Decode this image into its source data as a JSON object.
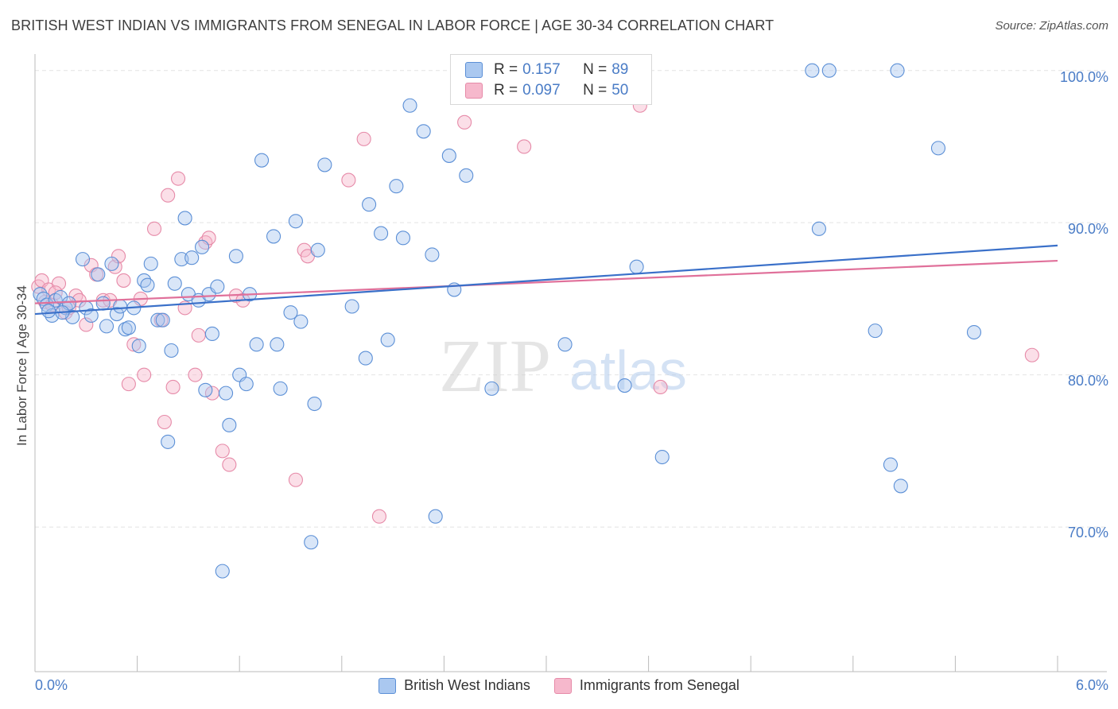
{
  "title": "BRITISH WEST INDIAN VS IMMIGRANTS FROM SENEGAL IN LABOR FORCE | AGE 30-34 CORRELATION CHART",
  "source": "Source: ZipAtlas.com",
  "watermark": {
    "zip": "ZIP",
    "atlas": "atlas"
  },
  "legend_stats": [
    {
      "r_label": "R =",
      "r_value": "0.157",
      "n_label": "N =",
      "n_value": "89"
    },
    {
      "r_label": "R =",
      "r_value": "0.097",
      "n_label": "N =",
      "n_value": "50"
    }
  ],
  "colors": {
    "blue_fill": "#aac8f0",
    "blue_stroke": "#5b8fd6",
    "blue_line": "#3a70c9",
    "pink_fill": "#f6b8cc",
    "pink_stroke": "#e68aa8",
    "pink_line": "#e0709a",
    "grid": "#e4e4e4",
    "axis_text": "#4a7cc6"
  },
  "chart_data": {
    "type": "scatter",
    "title": "BRITISH WEST INDIAN VS IMMIGRANTS FROM SENEGAL IN LABOR FORCE | AGE 30-34 CORRELATION CHART",
    "xlabel": "",
    "ylabel": "In Labor Force | Age 30-34",
    "x_tick_labels": [
      "0.0%",
      "6.0%"
    ],
    "y_tick_labels": [
      "100.0%",
      "90.0%",
      "80.0%",
      "70.0%"
    ],
    "xlim": [
      0,
      6
    ],
    "ylim": [
      60.5,
      101.5
    ],
    "grid": true,
    "legend_position": "bottom",
    "series": [
      {
        "name": "British West Indians",
        "r": 0.157,
        "n": 89,
        "trend": {
          "x": [
            0,
            6
          ],
          "y": [
            84.0,
            88.5
          ]
        },
        "points": [
          [
            0.03,
            85.3
          ],
          [
            0.05,
            85.0
          ],
          [
            0.07,
            84.6
          ],
          [
            0.1,
            83.9
          ],
          [
            0.12,
            84.9
          ],
          [
            0.15,
            85.1
          ],
          [
            0.18,
            84.4
          ],
          [
            0.2,
            84.7
          ],
          [
            0.28,
            87.6
          ],
          [
            0.3,
            84.4
          ],
          [
            0.33,
            83.9
          ],
          [
            0.37,
            86.6
          ],
          [
            0.4,
            84.7
          ],
          [
            0.42,
            83.2
          ],
          [
            0.45,
            87.3
          ],
          [
            0.48,
            84.0
          ],
          [
            0.5,
            84.5
          ],
          [
            0.53,
            83.0
          ],
          [
            0.55,
            83.1
          ],
          [
            0.58,
            84.4
          ],
          [
            0.61,
            81.9
          ],
          [
            0.64,
            86.2
          ],
          [
            0.66,
            85.9
          ],
          [
            0.68,
            87.3
          ],
          [
            0.72,
            83.6
          ],
          [
            0.75,
            83.6
          ],
          [
            0.78,
            75.6
          ],
          [
            0.8,
            81.6
          ],
          [
            0.82,
            86.0
          ],
          [
            0.86,
            87.6
          ],
          [
            0.88,
            90.3
          ],
          [
            0.9,
            85.3
          ],
          [
            0.92,
            87.7
          ],
          [
            0.96,
            84.9
          ],
          [
            0.98,
            88.4
          ],
          [
            1.0,
            79.0
          ],
          [
            1.02,
            85.3
          ],
          [
            1.04,
            82.7
          ],
          [
            1.07,
            85.8
          ],
          [
            1.1,
            67.1
          ],
          [
            1.12,
            78.8
          ],
          [
            1.14,
            76.7
          ],
          [
            1.18,
            87.8
          ],
          [
            1.2,
            80.0
          ],
          [
            1.24,
            79.4
          ],
          [
            1.26,
            85.3
          ],
          [
            1.3,
            82.0
          ],
          [
            1.33,
            94.1
          ],
          [
            1.4,
            89.1
          ],
          [
            1.42,
            82.0
          ],
          [
            1.44,
            79.1
          ],
          [
            1.5,
            84.1
          ],
          [
            1.53,
            90.1
          ],
          [
            1.56,
            83.5
          ],
          [
            1.62,
            69.0
          ],
          [
            1.64,
            78.1
          ],
          [
            1.66,
            88.2
          ],
          [
            1.7,
            93.8
          ],
          [
            1.86,
            84.5
          ],
          [
            1.94,
            81.1
          ],
          [
            1.96,
            91.2
          ],
          [
            2.03,
            89.3
          ],
          [
            2.07,
            82.3
          ],
          [
            2.12,
            92.4
          ],
          [
            2.16,
            89.0
          ],
          [
            2.2,
            97.7
          ],
          [
            2.28,
            96.0
          ],
          [
            2.33,
            87.9
          ],
          [
            2.35,
            70.7
          ],
          [
            2.43,
            94.4
          ],
          [
            2.46,
            85.6
          ],
          [
            2.53,
            93.1
          ],
          [
            2.68,
            79.1
          ],
          [
            3.11,
            82.0
          ],
          [
            3.46,
            79.3
          ],
          [
            3.53,
            87.1
          ],
          [
            3.68,
            74.6
          ],
          [
            4.56,
            100.0
          ],
          [
            4.66,
            100.0
          ],
          [
            5.06,
            100.0
          ],
          [
            4.6,
            89.6
          ],
          [
            4.93,
            82.9
          ],
          [
            5.02,
            74.1
          ],
          [
            5.08,
            72.7
          ],
          [
            5.3,
            94.9
          ],
          [
            5.51,
            82.8
          ],
          [
            0.08,
            84.2
          ],
          [
            0.22,
            83.8
          ],
          [
            0.16,
            84.1
          ]
        ]
      },
      {
        "name": "Immigrants from Senegal",
        "r": 0.097,
        "n": 50,
        "trend": {
          "x": [
            0,
            6
          ],
          "y": [
            84.7,
            87.5
          ]
        },
        "points": [
          [
            0.02,
            85.8
          ],
          [
            0.04,
            86.2
          ],
          [
            0.06,
            84.8
          ],
          [
            0.08,
            85.6
          ],
          [
            0.1,
            84.6
          ],
          [
            0.14,
            86.0
          ],
          [
            0.18,
            84.1
          ],
          [
            0.2,
            84.4
          ],
          [
            0.24,
            85.2
          ],
          [
            0.26,
            84.9
          ],
          [
            0.3,
            83.3
          ],
          [
            0.33,
            87.2
          ],
          [
            0.36,
            86.6
          ],
          [
            0.4,
            84.9
          ],
          [
            0.44,
            84.9
          ],
          [
            0.47,
            87.1
          ],
          [
            0.49,
            87.8
          ],
          [
            0.52,
            86.2
          ],
          [
            0.55,
            79.4
          ],
          [
            0.58,
            82.0
          ],
          [
            0.62,
            85.0
          ],
          [
            0.64,
            80.0
          ],
          [
            0.7,
            89.6
          ],
          [
            0.74,
            83.6
          ],
          [
            0.76,
            76.9
          ],
          [
            0.78,
            91.8
          ],
          [
            0.81,
            79.2
          ],
          [
            0.84,
            92.9
          ],
          [
            0.88,
            84.4
          ],
          [
            0.94,
            80.0
          ],
          [
            0.96,
            82.6
          ],
          [
            1.0,
            88.7
          ],
          [
            1.02,
            89.0
          ],
          [
            1.04,
            78.8
          ],
          [
            1.1,
            75.0
          ],
          [
            1.14,
            74.1
          ],
          [
            1.18,
            85.2
          ],
          [
            1.22,
            84.9
          ],
          [
            1.53,
            73.1
          ],
          [
            1.58,
            88.2
          ],
          [
            1.6,
            87.8
          ],
          [
            1.84,
            92.8
          ],
          [
            1.93,
            95.5
          ],
          [
            2.02,
            70.7
          ],
          [
            2.52,
            96.6
          ],
          [
            2.87,
            95.0
          ],
          [
            3.55,
            97.7
          ],
          [
            3.67,
            79.2
          ],
          [
            5.85,
            81.3
          ],
          [
            0.12,
            85.4
          ]
        ]
      }
    ]
  }
}
